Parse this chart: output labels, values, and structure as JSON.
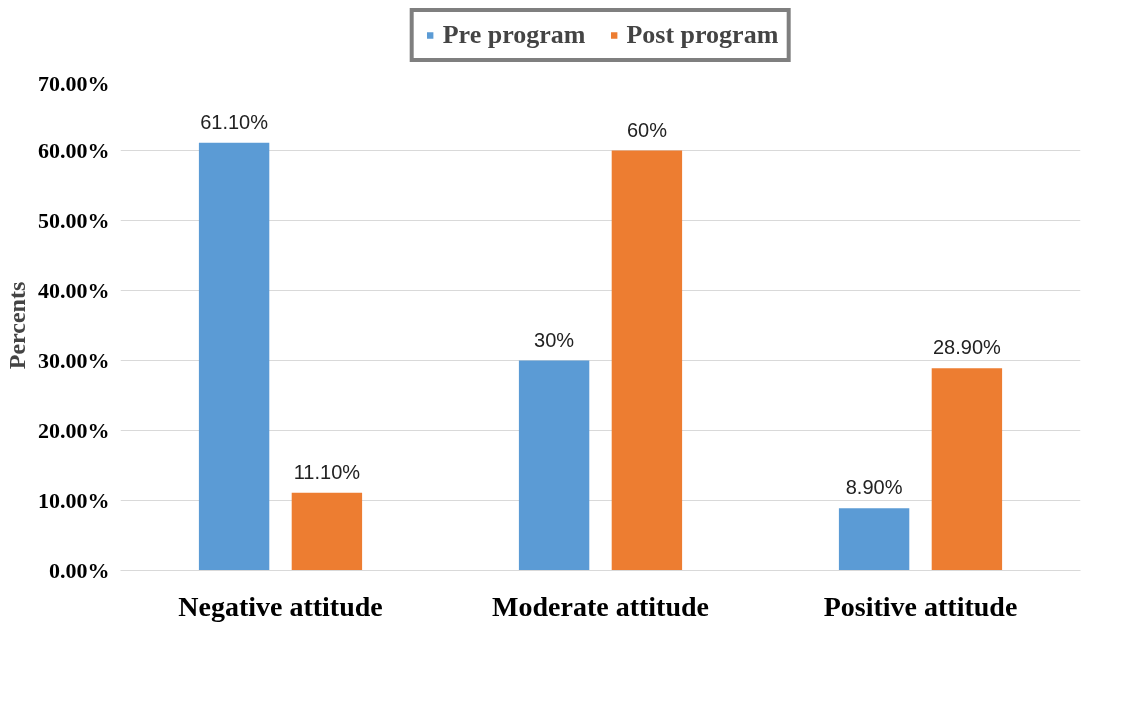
{
  "chart_data": {
    "type": "bar",
    "ylabel": "Percents",
    "categories": [
      "Negative attitude",
      "Moderate attitude",
      "Positive attitude"
    ],
    "series": [
      {
        "name": "Pre program",
        "color": "#5b9bd5",
        "values": [
          61.1,
          30,
          8.9
        ],
        "value_labels": [
          "61.10%",
          "30%",
          "8.90%"
        ]
      },
      {
        "name": "Post program",
        "color": "#ed7d31",
        "values": [
          11.1,
          60,
          28.9
        ],
        "value_labels": [
          "11.10%",
          "60%",
          "28.90%"
        ]
      }
    ],
    "ylim": [
      0,
      70
    ],
    "yticks": [
      {
        "value": 0,
        "label": "0.00%"
      },
      {
        "value": 10,
        "label": "10.00%"
      },
      {
        "value": 20,
        "label": "20.00%"
      },
      {
        "value": 30,
        "label": "30.00%"
      },
      {
        "value": 40,
        "label": "40.00%"
      },
      {
        "value": 50,
        "label": "50.00%"
      },
      {
        "value": 60,
        "label": "60.00%"
      },
      {
        "value": 70,
        "label": "70.00%"
      }
    ],
    "grid": "y",
    "legend": "top"
  }
}
